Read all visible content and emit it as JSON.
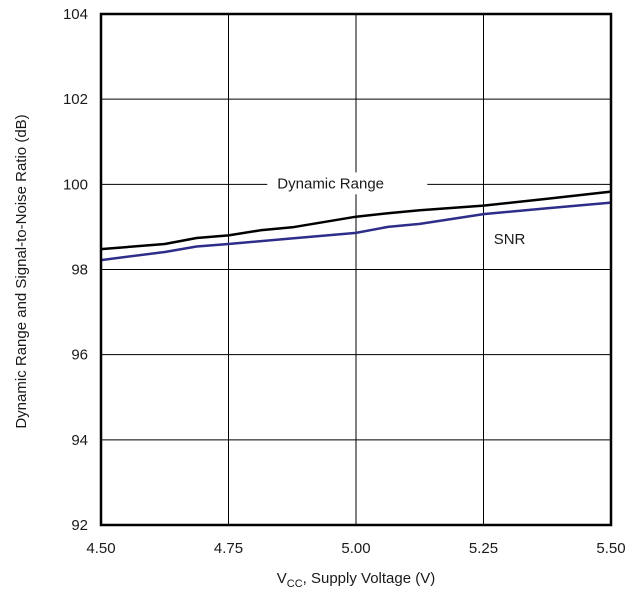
{
  "chart_data": {
    "type": "line",
    "title": "",
    "xlabel_main": "V",
    "xlabel_sub": "CC",
    "xlabel_rest": ", Supply Voltage (V)",
    "ylabel": "Dynamic Range and Signal-to-Noise Ratio (dB)",
    "xlim": [
      4.5,
      5.5
    ],
    "ylim": [
      92,
      104
    ],
    "x_ticks": [
      "4.50",
      "4.75",
      "5.00",
      "5.25",
      "5.50"
    ],
    "x_tick_values": [
      4.5,
      4.75,
      5.0,
      5.25,
      5.5
    ],
    "y_ticks": [
      "92",
      "94",
      "96",
      "98",
      "100",
      "102",
      "104"
    ],
    "y_tick_values": [
      92,
      94,
      96,
      98,
      100,
      102,
      104
    ],
    "grid": true,
    "series": [
      {
        "name": "Dynamic Range",
        "color": "#000000",
        "x": [
          4.5,
          4.625,
          4.6875,
          4.75,
          4.8125,
          4.875,
          5.0,
          5.0625,
          5.125,
          5.25,
          5.375,
          5.5
        ],
        "y": [
          98.48,
          98.6,
          98.74,
          98.8,
          98.92,
          98.99,
          99.24,
          99.32,
          99.39,
          99.5,
          99.66,
          99.83
        ]
      },
      {
        "name": "SNR",
        "color": "#2e2e8a",
        "x": [
          4.5,
          4.625,
          4.6875,
          4.75,
          4.875,
          5.0,
          5.0625,
          5.125,
          5.25,
          5.375,
          5.5
        ],
        "y": [
          98.22,
          98.41,
          98.54,
          98.6,
          98.73,
          98.86,
          99.0,
          99.07,
          99.3,
          99.44,
          99.57
        ]
      }
    ],
    "annotations": [
      {
        "text": "Dynamic Range",
        "series": 0
      },
      {
        "text": "SNR",
        "series": 1
      }
    ]
  }
}
